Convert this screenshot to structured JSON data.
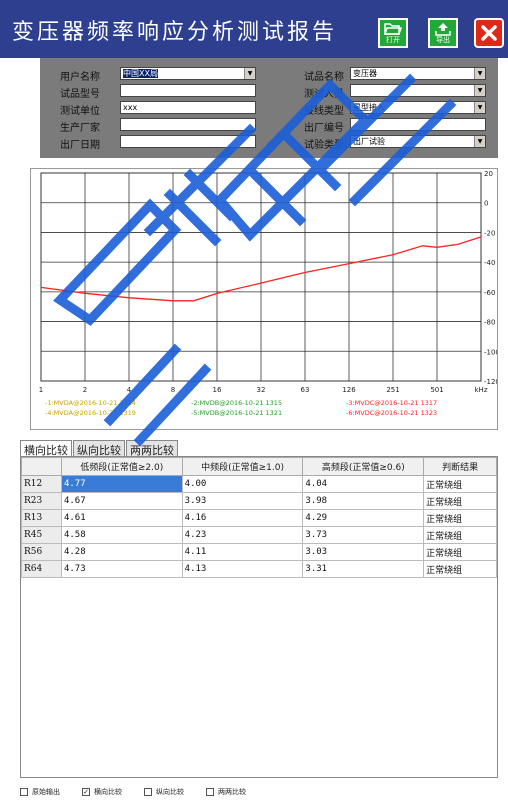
{
  "window": {
    "title": "变压器频率响应分析测试报告",
    "open_label": "打开",
    "export_label": "导出"
  },
  "info": {
    "left": [
      {
        "label": "用户名称",
        "value": "中国XX局",
        "dropdown": true
      },
      {
        "label": "试品型号",
        "value": "",
        "dropdown": false
      },
      {
        "label": "测试单位",
        "value": "xxx",
        "dropdown": false
      },
      {
        "label": "生产厂家",
        "value": "",
        "dropdown": false
      },
      {
        "label": "出厂日期",
        "value": "",
        "dropdown": false
      }
    ],
    "right": [
      {
        "label": "试品名称",
        "value": "变压器",
        "dropdown": true
      },
      {
        "label": "测试人员",
        "value": "",
        "dropdown": true
      },
      {
        "label": "接线类型",
        "value": "星型接入",
        "dropdown": true
      },
      {
        "label": "出厂编号",
        "value": "",
        "dropdown": false
      },
      {
        "label": "试验类型",
        "value": "出厂试验",
        "dropdown": true
      }
    ]
  },
  "chart_data": {
    "type": "line",
    "x_ticks": [
      "1",
      "2",
      "4",
      "8",
      "16",
      "32",
      "63",
      "126",
      "251",
      "501",
      "kHz"
    ],
    "y_ticks": [
      "20",
      "0",
      "-20",
      "-40",
      "-60",
      "-80",
      "-100",
      "-120"
    ],
    "ylim": [
      -120,
      20
    ],
    "xlim_khz": [
      1,
      1000
    ],
    "grid": true,
    "series": [
      {
        "name": "6:MVDC@2016-10-21 1323",
        "color": "#ff2020",
        "points": [
          [
            1,
            -57
          ],
          [
            2,
            -61
          ],
          [
            4,
            -64
          ],
          [
            8,
            -66
          ],
          [
            11,
            -66
          ],
          [
            16,
            -61
          ],
          [
            32,
            -54
          ],
          [
            63,
            -47
          ],
          [
            126,
            -41
          ],
          [
            251,
            -35
          ],
          [
            400,
            -29
          ],
          [
            501,
            -30
          ],
          [
            700,
            -28
          ],
          [
            1000,
            -23
          ]
        ]
      }
    ],
    "legend": [
      {
        "text": "-1:MVDA@2016-10-21 1314",
        "color": "#c8a000"
      },
      {
        "text": "-2:MVDB@2016-10-21 1315",
        "color": "#20a020"
      },
      {
        "text": "-3:MVDC@2016-10-21 1317",
        "color": "#ff2020"
      },
      {
        "text": "-4:MVDA@2016-10-21 1319",
        "color": "#c8a000"
      },
      {
        "text": "-5:MVDB@2016-10-21 1321",
        "color": "#20a020"
      },
      {
        "text": "-6:MVDC@2016-10-21 1323",
        "color": "#ff2020"
      }
    ]
  },
  "tabs": [
    "横向比较",
    "纵向比较",
    "两两比较"
  ],
  "table": {
    "headers": [
      "",
      "低频段(正常值≥2.0)",
      "中频段(正常值≥1.0)",
      "高频段(正常值≥0.6)",
      "判断结果"
    ],
    "rows": [
      {
        "id": "R12",
        "low": "4.77",
        "mid": "4.00",
        "high": "4.04",
        "result": "正常绕组"
      },
      {
        "id": "R23",
        "low": "4.67",
        "mid": "3.93",
        "high": "3.98",
        "result": "正常绕组"
      },
      {
        "id": "R13",
        "low": "4.61",
        "mid": "4.16",
        "high": "4.29",
        "result": "正常绕组"
      },
      {
        "id": "R45",
        "low": "4.58",
        "mid": "4.23",
        "high": "3.73",
        "result": "正常绕组"
      },
      {
        "id": "R56",
        "low": "4.28",
        "mid": "4.11",
        "high": "3.03",
        "result": "正常绕组"
      },
      {
        "id": "R64",
        "low": "4.73",
        "mid": "4.13",
        "high": "3.31",
        "result": "正常绕组"
      }
    ]
  },
  "bottom": [
    {
      "label": "原始输出",
      "checked": false
    },
    {
      "label": "横向比较",
      "checked": true
    },
    {
      "label": "纵向比较",
      "checked": false
    },
    {
      "label": "两两比较",
      "checked": false
    }
  ],
  "colors": {
    "title_bar": "#2d3f8e",
    "info_panel": "#7b7b7b",
    "curve": "#ff2020",
    "selected_cell": "#3b7bd8"
  }
}
